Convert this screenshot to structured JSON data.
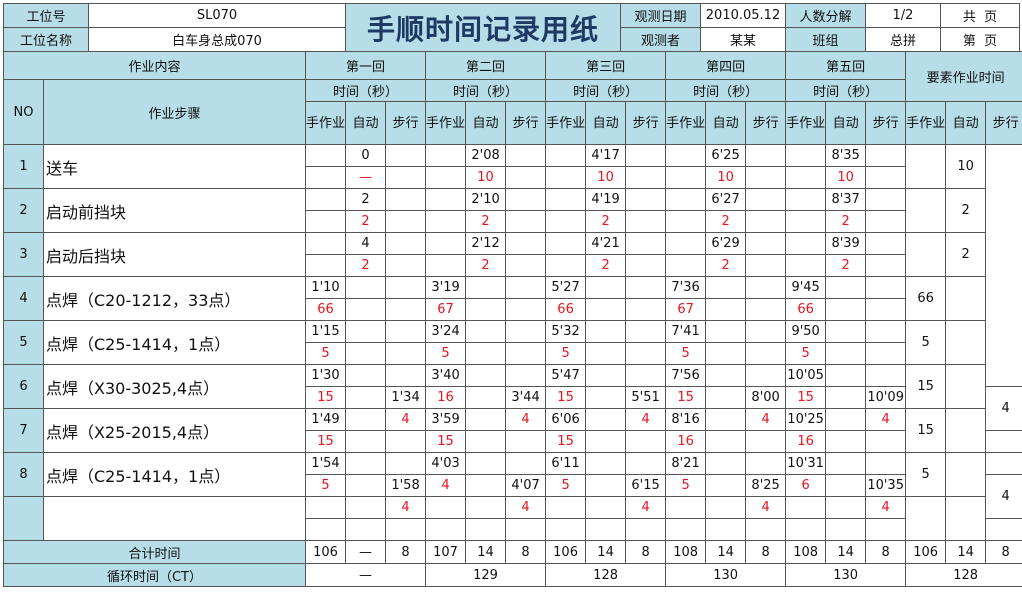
{
  "header": {
    "station_no_label": "工位号",
    "station_no": "SL070",
    "station_name_label": "工位名称",
    "station_name": "白车身总成070",
    "title": "手顺时间记录用纸",
    "obs_date_label": "观测日期",
    "obs_date": "2010.05.12",
    "observer_label": "观测者",
    "observer": "某某",
    "headcount_label": "人数分解",
    "headcount": "1/2",
    "team_label": "班组",
    "team": "总拼",
    "total_pages": "共  页",
    "page_no": "第  页"
  },
  "colors": {
    "header_bg": "#b7dde8",
    "title": "#1f3864",
    "red": "#e8141c"
  },
  "table": {
    "content_label": "作业内容",
    "no_label": "NO",
    "step_label": "作业步骤",
    "time_label": "时间（秒）",
    "sub_labels": [
      "手作业",
      "自动",
      "步行"
    ],
    "summary_label": "要素作业时间",
    "total_label": "合计时间",
    "ct_label": "循环时间（CT）",
    "items": [
      {
        "no": "1",
        "step": "送车"
      },
      {
        "no": "2",
        "step": "启动前挡块"
      },
      {
        "no": "3",
        "step": "启动后挡块"
      },
      {
        "no": "4",
        "step": "点焊（C20-1212，33点）"
      },
      {
        "no": "5",
        "step": "点焊（C25-1414，1点）"
      },
      {
        "no": "6",
        "step": "点焊（X30-3025,4点）"
      },
      {
        "no": "7",
        "step": "点焊（X25-2015,4点）"
      },
      {
        "no": "8",
        "step": "点焊（C25-1414，1点）"
      },
      {
        "no": "",
        "step": ""
      }
    ],
    "rounds": [
      {
        "label": "第一回",
        "cells": [
          [
            "",
            "",
            "0",
            "—",
            "",
            ""
          ],
          [
            "",
            "",
            "2",
            "2",
            "",
            ""
          ],
          [
            "",
            "",
            "4",
            "2",
            "",
            ""
          ],
          [
            "1'10",
            "66",
            "",
            "",
            "",
            ""
          ],
          [
            "1'15",
            "5",
            "",
            "",
            "",
            ""
          ],
          [
            "1'30",
            "15",
            "",
            "",
            "",
            "1'34"
          ],
          [
            "1'49",
            "15",
            "",
            "",
            "4",
            ""
          ],
          [
            "1'54",
            "5",
            "",
            "",
            "",
            "1'58"
          ],
          [
            "",
            "",
            "",
            "",
            "4",
            ""
          ]
        ],
        "totals": [
          "106",
          "—",
          "8"
        ],
        "ct": "—"
      },
      {
        "label": "第二回",
        "cells": [
          [
            "",
            "",
            "2'08",
            "10",
            "",
            ""
          ],
          [
            "",
            "",
            "2'10",
            "2",
            "",
            ""
          ],
          [
            "",
            "",
            "2'12",
            "2",
            "",
            ""
          ],
          [
            "3'19",
            "67",
            "",
            "",
            "",
            ""
          ],
          [
            "3'24",
            "5",
            "",
            "",
            "",
            ""
          ],
          [
            "3'40",
            "16",
            "",
            "",
            "",
            "3'44"
          ],
          [
            "3'59",
            "15",
            "",
            "",
            "4",
            ""
          ],
          [
            "4'03",
            "4",
            "",
            "",
            "",
            "4'07"
          ],
          [
            "",
            "",
            "",
            "",
            "4",
            ""
          ]
        ],
        "totals": [
          "107",
          "14",
          "8"
        ],
        "ct": "129"
      },
      {
        "label": "第三回",
        "cells": [
          [
            "",
            "",
            "4'17",
            "10",
            "",
            ""
          ],
          [
            "",
            "",
            "4'19",
            "2",
            "",
            ""
          ],
          [
            "",
            "",
            "4'21",
            "2",
            "",
            ""
          ],
          [
            "5'27",
            "66",
            "",
            "",
            "",
            ""
          ],
          [
            "5'32",
            "5",
            "",
            "",
            "",
            ""
          ],
          [
            "5'47",
            "15",
            "",
            "",
            "",
            "5'51"
          ],
          [
            "6'06",
            "15",
            "",
            "",
            "4",
            ""
          ],
          [
            "6'11",
            "5",
            "",
            "",
            "",
            "6'15"
          ],
          [
            "",
            "",
            "",
            "",
            "4",
            ""
          ]
        ],
        "totals": [
          "106",
          "14",
          "8"
        ],
        "ct": "128"
      },
      {
        "label": "第四回",
        "cells": [
          [
            "",
            "",
            "6'25",
            "10",
            "",
            ""
          ],
          [
            "",
            "",
            "6'27",
            "2",
            "",
            ""
          ],
          [
            "",
            "",
            "6'29",
            "2",
            "",
            ""
          ],
          [
            "7'36",
            "67",
            "",
            "",
            "",
            ""
          ],
          [
            "7'41",
            "5",
            "",
            "",
            "",
            ""
          ],
          [
            "7'56",
            "15",
            "",
            "",
            "",
            "8'00"
          ],
          [
            "8'16",
            "16",
            "",
            "",
            "4",
            ""
          ],
          [
            "8'21",
            "5",
            "",
            "",
            "",
            "8'25"
          ],
          [
            "",
            "",
            "",
            "",
            "4",
            ""
          ]
        ],
        "totals": [
          "108",
          "14",
          "8"
        ],
        "ct": "130"
      },
      {
        "label": "第五回",
        "cells": [
          [
            "",
            "",
            "8'35",
            "10",
            "",
            ""
          ],
          [
            "",
            "",
            "8'37",
            "2",
            "",
            ""
          ],
          [
            "",
            "",
            "8'39",
            "2",
            "",
            ""
          ],
          [
            "9'45",
            "66",
            "",
            "",
            "",
            ""
          ],
          [
            "9'50",
            "5",
            "",
            "",
            "",
            ""
          ],
          [
            "10'05",
            "15",
            "",
            "",
            "",
            "10'09"
          ],
          [
            "10'25",
            "16",
            "",
            "",
            "4",
            ""
          ],
          [
            "10'31",
            "6",
            "",
            "",
            "",
            "10'35"
          ],
          [
            "",
            "",
            "",
            "",
            "4",
            ""
          ]
        ],
        "totals": [
          "108",
          "14",
          "8"
        ],
        "ct": "130"
      }
    ],
    "summary": {
      "hand": [
        "",
        "",
        "",
        "66",
        "5",
        "15",
        "15",
        "5",
        ""
      ],
      "auto": [
        "10",
        "2",
        "2",
        "",
        "",
        "",
        "",
        "",
        ""
      ],
      "walk": [
        "4",
        "4"
      ],
      "totals": [
        "106",
        "14",
        "8"
      ],
      "ct": "128"
    }
  }
}
